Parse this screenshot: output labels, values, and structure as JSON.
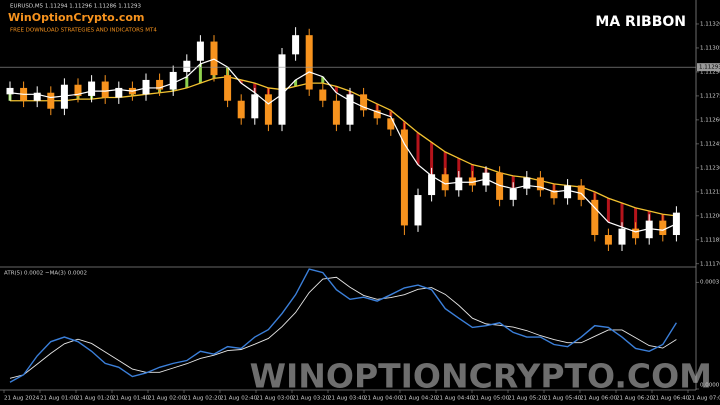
{
  "branding": {
    "site": "WinOptionCrypto.com",
    "tagline": "FREE DOWNLOAD STRATEGIES AND INDICATORS MT4",
    "watermark": "WINOPTIONCRYPTO.COM"
  },
  "chart_data": [
    {
      "type": "candlestick",
      "title": "MA RIBBON",
      "subtitle": "EURUSD,M5  1.11294 1.11296 1.11286 1.11293",
      "open": [
        1.11276,
        1.1128,
        1.11272,
        1.11277,
        1.11267,
        1.11282,
        1.11275,
        1.11284,
        1.11274,
        1.1128,
        1.11276,
        1.11285,
        1.11279,
        1.1129,
        1.11297,
        1.11309,
        1.11288,
        1.11272,
        1.11261,
        1.11276,
        1.11257,
        1.11301,
        1.11313,
        1.11279,
        1.11272,
        1.11257,
        1.11276,
        1.11266,
        1.11261,
        1.11254,
        1.11194,
        1.11213,
        1.11226,
        1.11216,
        1.11224,
        1.11219,
        1.11227,
        1.1121,
        1.11217,
        1.11224,
        1.11216,
        1.11211,
        1.11219,
        1.1121,
        1.11188,
        1.11182,
        1.11192,
        1.11186,
        1.11197,
        1.11188
      ],
      "high": [
        1.11284,
        1.11284,
        1.11281,
        1.11281,
        1.11286,
        1.11286,
        1.11288,
        1.11288,
        1.11284,
        1.11284,
        1.11289,
        1.11289,
        1.11294,
        1.11301,
        1.11313,
        1.11313,
        1.11292,
        1.11276,
        1.1128,
        1.1128,
        1.11305,
        1.11318,
        1.11317,
        1.11283,
        1.11276,
        1.1128,
        1.1128,
        1.1127,
        1.11265,
        1.11258,
        1.11217,
        1.1123,
        1.1123,
        1.11228,
        1.11228,
        1.11231,
        1.11231,
        1.11221,
        1.11228,
        1.11228,
        1.1122,
        1.11223,
        1.11223,
        1.11214,
        1.11192,
        1.11196,
        1.11196,
        1.11201,
        1.11201,
        1.11206
      ],
      "low": [
        1.11272,
        1.11268,
        1.11268,
        1.11263,
        1.11263,
        1.11271,
        1.11271,
        1.1127,
        1.1127,
        1.11272,
        1.11272,
        1.11275,
        1.11275,
        1.11286,
        1.11293,
        1.11284,
        1.11268,
        1.11257,
        1.11257,
        1.11253,
        1.11253,
        1.11297,
        1.11275,
        1.11268,
        1.11253,
        1.11253,
        1.11262,
        1.11257,
        1.1125,
        1.11188,
        1.1119,
        1.11209,
        1.11212,
        1.11212,
        1.11215,
        1.11215,
        1.11206,
        1.11206,
        1.11213,
        1.11212,
        1.11207,
        1.11207,
        1.11206,
        1.11184,
        1.11178,
        1.11178,
        1.11182,
        1.11182,
        1.11184,
        1.11184
      ],
      "close": [
        1.1128,
        1.11272,
        1.11277,
        1.11267,
        1.11282,
        1.11275,
        1.11284,
        1.11274,
        1.1128,
        1.11276,
        1.11285,
        1.11279,
        1.1129,
        1.11297,
        1.11309,
        1.11288,
        1.11272,
        1.11261,
        1.11276,
        1.11257,
        1.11301,
        1.11313,
        1.11279,
        1.11272,
        1.11257,
        1.11276,
        1.11266,
        1.11261,
        1.11254,
        1.11194,
        1.11213,
        1.11226,
        1.11216,
        1.11224,
        1.11219,
        1.11227,
        1.1121,
        1.11217,
        1.11224,
        1.11216,
        1.11211,
        1.11219,
        1.1121,
        1.11188,
        1.11182,
        1.11192,
        1.11186,
        1.11197,
        1.11188,
        1.11202
      ],
      "up_color": "#ffffff",
      "down_color": "#f7931e",
      "ma_fast": {
        "color": "#ffffff",
        "values": [
          1.11277,
          1.11276,
          1.11276,
          1.11274,
          1.11275,
          1.11276,
          1.11278,
          1.11278,
          1.11279,
          1.11278,
          1.1128,
          1.1128,
          1.11283,
          1.11287,
          1.11295,
          1.11298,
          1.11293,
          1.11283,
          1.11277,
          1.1127,
          1.11276,
          1.11285,
          1.1129,
          1.11287,
          1.11277,
          1.11272,
          1.11268,
          1.11265,
          1.11262,
          1.11245,
          1.11232,
          1.11225,
          1.1122,
          1.11221,
          1.11221,
          1.11223,
          1.11219,
          1.11217,
          1.11219,
          1.11218,
          1.11215,
          1.11216,
          1.11214,
          1.11205,
          1.11196,
          1.11193,
          1.1119,
          1.11192,
          1.11191,
          1.11195
        ]
      },
      "ma_slow": {
        "color": "#f2c230",
        "values": [
          1.11272,
          1.11272,
          1.11272,
          1.11272,
          1.11272,
          1.11273,
          1.11273,
          1.11274,
          1.11274,
          1.11275,
          1.11276,
          1.11277,
          1.11278,
          1.1128,
          1.11283,
          1.11286,
          1.11287,
          1.11285,
          1.11283,
          1.1128,
          1.11279,
          1.11281,
          1.11283,
          1.11283,
          1.11281,
          1.11278,
          1.11274,
          1.1127,
          1.11266,
          1.11259,
          1.11252,
          1.11246,
          1.1124,
          1.11236,
          1.11232,
          1.1123,
          1.11227,
          1.11225,
          1.11224,
          1.11222,
          1.1122,
          1.11219,
          1.11218,
          1.11215,
          1.11211,
          1.11208,
          1.11205,
          1.11203,
          1.11201,
          1.112
        ]
      },
      "ribbon_up_color": "#8fd14f",
      "ribbon_down_color": "#b5141b",
      "price_line": 1.11293,
      "ylim": [
        1.11168,
        1.11335
      ],
      "yticks": [
        {
          "value": 1.1132,
          "label": "1.11320"
        },
        {
          "value": 1.11305,
          "label": "1.11305"
        },
        {
          "value": 1.1129,
          "label": "1.11290"
        },
        {
          "value": 1.11275,
          "label": "1.11275"
        },
        {
          "value": 1.1126,
          "label": "1.11260"
        },
        {
          "value": 1.11245,
          "label": "1.11245"
        },
        {
          "value": 1.1123,
          "label": "1.11230"
        },
        {
          "value": 1.11215,
          "label": "1.11215"
        },
        {
          "value": 1.112,
          "label": "1.11200"
        },
        {
          "value": 1.11185,
          "label": "1.11185"
        },
        {
          "value": 1.1117,
          "label": "1.11170"
        }
      ]
    },
    {
      "type": "line",
      "title": "ATR(5) 0.0002  ~MA(3) 0.0002",
      "series": [
        {
          "color": "#3b7fd9",
          "values": [
            1.9e-05,
            4e-05,
            9.3e-05,
            0.000133,
            0.000146,
            0.000133,
            0.000106,
            7.2e-05,
            6.1e-05,
            3.5e-05,
            4.5e-05,
            6.1e-05,
            7.2e-05,
            8e-05,
            0.000106,
            9.8e-05,
            0.000119,
            0.000114,
            0.000146,
            0.000167,
            0.000212,
            0.000265,
            0.000337,
            0.000327,
            0.000279,
            0.000252,
            0.000258,
            0.000247,
            0.000265,
            0.000284,
            0.000292,
            0.000279,
            0.000226,
            0.000199,
            0.000173,
            0.000178,
            0.000186,
            0.000159,
            0.000146,
            0.000146,
            0.000125,
            0.000119,
            0.000146,
            0.000178,
            0.000173,
            0.000146,
            0.000114,
            0.000106,
            0.000125,
            0.000186
          ]
        },
        {
          "color": "#e6e6e6",
          "values": [
            3e-05,
            4e-05,
            7e-05,
            0.0001,
            0.000127,
            0.00014,
            0.000128,
            0.000104,
            8e-05,
            5.6e-05,
            4.7e-05,
            4.7e-05,
            5.9e-05,
            7.1e-05,
            8.6e-05,
            9.5e-05,
            0.000108,
            0.000111,
            0.000126,
            0.000142,
            0.000175,
            0.000215,
            0.000271,
            0.000309,
            0.000314,
            0.000286,
            0.000263,
            0.000252,
            0.000257,
            0.000265,
            0.00028,
            0.000285,
            0.000266,
            0.000235,
            0.000199,
            0.000183,
            0.000179,
            0.000174,
            0.000164,
            0.00015,
            0.000139,
            0.00013,
            0.00013,
            0.000148,
            0.000166,
            0.000166,
            0.000144,
            0.000122,
            0.000115,
            0.000139
          ]
        }
      ],
      "ylim": [
        0,
        0.00034
      ],
      "yticks": [
        0.0003,
        {
          "value": 0,
          "label": "0.0000"
        }
      ],
      "xtick_labels": [
        "21 Aug 2024",
        "21 Aug 01:00",
        "21 Aug 01:20",
        "21 Aug 01:40",
        "21 Aug 02:00",
        "21 Aug 02:20",
        "21 Aug 02:40",
        "21 Aug 03:00",
        "21 Aug 03:20",
        "21 Aug 03:40",
        "21 Aug 04:00",
        "21 Aug 04:20",
        "21 Aug 04:40",
        "21 Aug 05:00",
        "21 Aug 05:20",
        "21 Aug 05:40",
        "21 Aug 06:00",
        "21 Aug 06:20",
        "21 Aug 06:40",
        "21 Aug 07:00"
      ]
    }
  ]
}
